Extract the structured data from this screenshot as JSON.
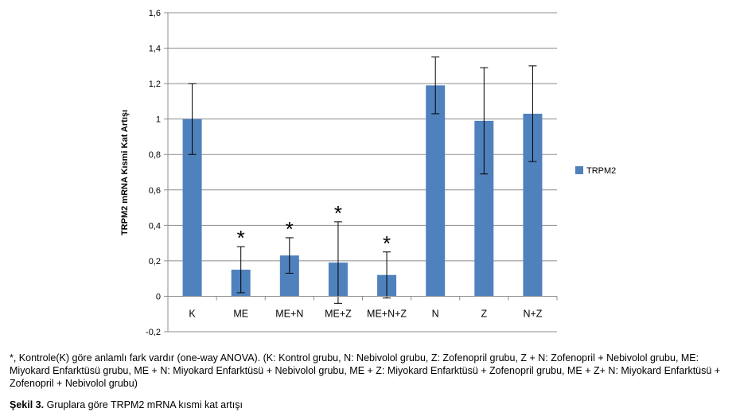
{
  "chart_data": {
    "type": "bar",
    "ylabel": "TRPM2 mRNA Kısmi Kat Artışı",
    "ylim": [
      -0.2,
      1.6
    ],
    "ytick_step": 0.2,
    "yticks": [
      "-0,2",
      "0",
      "0,2",
      "0,4",
      "0,6",
      "0,8",
      "1",
      "1,2",
      "1,4",
      "1,6"
    ],
    "grid": true,
    "legend_position": "right",
    "categories": [
      "K",
      "ME",
      "ME+N",
      "ME+Z",
      "ME+N+Z",
      "N",
      "Z",
      "N+Z"
    ],
    "series": [
      {
        "name": "TRPM2",
        "color": "#4F81BD",
        "values": [
          1.0,
          0.15,
          0.23,
          0.19,
          0.12,
          1.19,
          0.99,
          1.03
        ],
        "error": [
          0.2,
          0.13,
          0.1,
          0.23,
          0.13,
          0.16,
          0.3,
          0.27
        ],
        "significant": [
          false,
          true,
          true,
          true,
          true,
          false,
          false,
          false
        ]
      }
    ],
    "significance_mark": "*"
  },
  "caption": {
    "note": "*, Kontrole(K) göre anlamlı fark vardır (one-way ANOVA). (K: Kontrol grubu, N: Nebivolol grubu, Z: Zofenopril grubu, Z + N: Zofenopril + Nebivolol grubu, ME: Miyokard Enfarktüsü grubu, ME + N: Miyokard Enfarktüsü + Nebivolol grubu, ME + Z: Miyokard Enfarktüsü + Zofenopril grubu, ME + Z+ N: Miyokard Enfarktüsü + Zofenopril + Nebivolol grubu)",
    "figure_label": "Şekil 3.",
    "figure_text": "Gruplara göre TRPM2 mRNA kısmi kat artışı"
  }
}
